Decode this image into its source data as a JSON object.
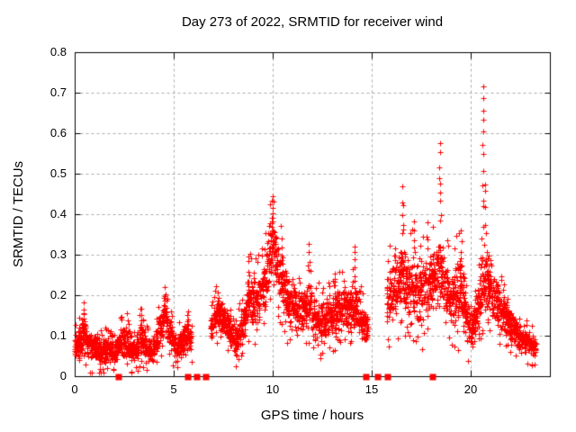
{
  "chart_data": {
    "type": "scatter",
    "title": "Day 273 of 2022, SRMTID for receiver wind",
    "xlabel": "GPS time / hours",
    "ylabel": "SRMTID / TECUs",
    "xlim": [
      0,
      24
    ],
    "ylim": [
      0,
      0.8
    ],
    "xticks": {
      "values": [
        0,
        5,
        10,
        15,
        20
      ],
      "labels": [
        "0",
        "5",
        "10",
        "15",
        "20"
      ]
    },
    "yticks": {
      "values": [
        0,
        0.1,
        0.2,
        0.3,
        0.4,
        0.5,
        0.6,
        0.7,
        0.8
      ],
      "labels": [
        "0",
        "0.1",
        "0.2",
        "0.3",
        "0.4",
        "0.5",
        "0.6",
        "0.7",
        "0.8"
      ]
    },
    "grid": {
      "show": true,
      "color": "#ababab",
      "dash": [
        3,
        3
      ]
    },
    "frame_color": "#000000",
    "legend": "none",
    "marker": "plus",
    "marker_color": "#ff0000",
    "series": [
      {
        "name": "srmtid",
        "style": "points-plus",
        "color": "#ff0000",
        "clusters": [
          {
            "range": [
              0.0,
              5.9
            ],
            "band": [
              [
                0.0,
                0.03,
                0.1
              ],
              [
                0.3,
                0.04,
                0.14
              ],
              [
                0.45,
                0.05,
                0.18
              ],
              [
                0.6,
                0.04,
                0.12
              ],
              [
                1.0,
                0.03,
                0.11
              ],
              [
                1.5,
                0.03,
                0.1
              ],
              [
                2.0,
                0.03,
                0.09
              ],
              [
                2.3,
                0.04,
                0.12
              ],
              [
                2.6,
                0.04,
                0.13
              ],
              [
                3.0,
                0.03,
                0.09
              ],
              [
                3.35,
                0.05,
                0.15
              ],
              [
                3.6,
                0.04,
                0.11
              ],
              [
                3.9,
                0.02,
                0.1
              ],
              [
                4.15,
                0.05,
                0.13
              ],
              [
                4.4,
                0.08,
                0.18
              ],
              [
                4.55,
                0.1,
                0.21
              ],
              [
                4.75,
                0.07,
                0.16
              ],
              [
                4.95,
                0.05,
                0.12
              ],
              [
                5.15,
                0.04,
                0.1
              ],
              [
                5.45,
                0.05,
                0.13
              ],
              [
                5.7,
                0.06,
                0.15
              ],
              [
                5.9,
                0.05,
                0.12
              ]
            ]
          },
          {
            "range": [
              6.85,
              14.8
            ],
            "band": [
              [
                6.85,
                0.09,
                0.16
              ],
              [
                7.1,
                0.1,
                0.19
              ],
              [
                7.3,
                0.11,
                0.2
              ],
              [
                7.6,
                0.09,
                0.17
              ],
              [
                7.9,
                0.06,
                0.14
              ],
              [
                8.2,
                0.05,
                0.13
              ],
              [
                8.5,
                0.08,
                0.18
              ],
              [
                8.78,
                0.12,
                0.26
              ],
              [
                9.0,
                0.12,
                0.25
              ],
              [
                9.3,
                0.13,
                0.26
              ],
              [
                9.6,
                0.15,
                0.3
              ],
              [
                9.85,
                0.2,
                0.4
              ],
              [
                10.0,
                0.22,
                0.43
              ],
              [
                10.15,
                0.2,
                0.35
              ],
              [
                10.4,
                0.17,
                0.32
              ],
              [
                10.7,
                0.13,
                0.27
              ],
              [
                11.0,
                0.12,
                0.24
              ],
              [
                11.3,
                0.1,
                0.22
              ],
              [
                11.6,
                0.1,
                0.22
              ],
              [
                11.85,
                0.11,
                0.25
              ],
              [
                12.1,
                0.08,
                0.2
              ],
              [
                12.5,
                0.08,
                0.19
              ],
              [
                12.9,
                0.09,
                0.21
              ],
              [
                13.3,
                0.1,
                0.23
              ],
              [
                13.7,
                0.1,
                0.23
              ],
              [
                14.1,
                0.1,
                0.24
              ],
              [
                14.4,
                0.08,
                0.2
              ],
              [
                14.8,
                0.08,
                0.16
              ]
            ]
          },
          {
            "range": [
              15.75,
              23.3
            ],
            "band": [
              [
                15.75,
                0.1,
                0.26
              ],
              [
                15.9,
                0.12,
                0.28
              ],
              [
                16.2,
                0.14,
                0.29
              ],
              [
                16.55,
                0.16,
                0.34
              ],
              [
                16.9,
                0.14,
                0.3
              ],
              [
                17.2,
                0.14,
                0.31
              ],
              [
                17.5,
                0.12,
                0.3
              ],
              [
                17.8,
                0.14,
                0.32
              ],
              [
                18.1,
                0.15,
                0.32
              ],
              [
                18.45,
                0.18,
                0.37
              ],
              [
                18.7,
                0.14,
                0.3
              ],
              [
                19.0,
                0.12,
                0.26
              ],
              [
                19.3,
                0.12,
                0.29
              ],
              [
                19.5,
                0.13,
                0.32
              ],
              [
                19.8,
                0.08,
                0.2
              ],
              [
                20.1,
                0.07,
                0.17
              ],
              [
                20.35,
                0.1,
                0.22
              ],
              [
                20.6,
                0.15,
                0.34
              ],
              [
                20.9,
                0.15,
                0.31
              ],
              [
                21.2,
                0.13,
                0.27
              ],
              [
                21.5,
                0.1,
                0.22
              ],
              [
                21.9,
                0.08,
                0.18
              ],
              [
                22.3,
                0.06,
                0.14
              ],
              [
                22.7,
                0.05,
                0.12
              ],
              [
                23.3,
                0.04,
                0.1
              ]
            ]
          }
        ],
        "spikes": [
          {
            "t": 0.45,
            "from": 0.13,
            "to": 0.19,
            "n": 4
          },
          {
            "t": 3.35,
            "from": 0.12,
            "to": 0.17,
            "n": 4
          },
          {
            "t": 4.55,
            "from": 0.16,
            "to": 0.22,
            "n": 4
          },
          {
            "t": 5.7,
            "from": 0.12,
            "to": 0.17,
            "n": 3
          },
          {
            "t": 7.25,
            "from": 0.16,
            "to": 0.21,
            "n": 3
          },
          {
            "t": 8.78,
            "from": 0.22,
            "to": 0.3,
            "n": 5
          },
          {
            "t": 9.97,
            "from": 0.36,
            "to": 0.45,
            "n": 7
          },
          {
            "t": 10.45,
            "from": 0.28,
            "to": 0.34,
            "n": 4
          },
          {
            "t": 11.82,
            "from": 0.22,
            "to": 0.33,
            "n": 5
          },
          {
            "t": 13.15,
            "from": 0.2,
            "to": 0.26,
            "n": 4
          },
          {
            "t": 14.15,
            "from": 0.22,
            "to": 0.33,
            "n": 6
          },
          {
            "t": 16.2,
            "from": 0.26,
            "to": 0.32,
            "n": 4
          },
          {
            "t": 16.55,
            "from": 0.33,
            "to": 0.47,
            "n": 6
          },
          {
            "t": 17.15,
            "from": 0.3,
            "to": 0.4,
            "n": 4
          },
          {
            "t": 17.8,
            "from": 0.3,
            "to": 0.38,
            "n": 4
          },
          {
            "t": 18.45,
            "from": 0.36,
            "to": 0.58,
            "n": 9
          },
          {
            "t": 19.5,
            "from": 0.28,
            "to": 0.36,
            "n": 4
          },
          {
            "t": 20.62,
            "from": 0.36,
            "to": 0.74,
            "n": 12
          },
          {
            "t": 20.72,
            "from": 0.3,
            "to": 0.5,
            "n": 5
          }
        ],
        "generator": {
          "seed": 20220973,
          "step_hours": 0.0095,
          "extra_point_prob": 0.4,
          "second_extra_prob": 0.12
        }
      },
      {
        "name": "gap-markers",
        "style": "filled-square",
        "color": "#ff0000",
        "x": [
          2.2,
          5.7,
          6.15,
          6.6,
          14.7,
          15.27,
          15.78,
          18.05
        ],
        "y": 0
      }
    ]
  }
}
